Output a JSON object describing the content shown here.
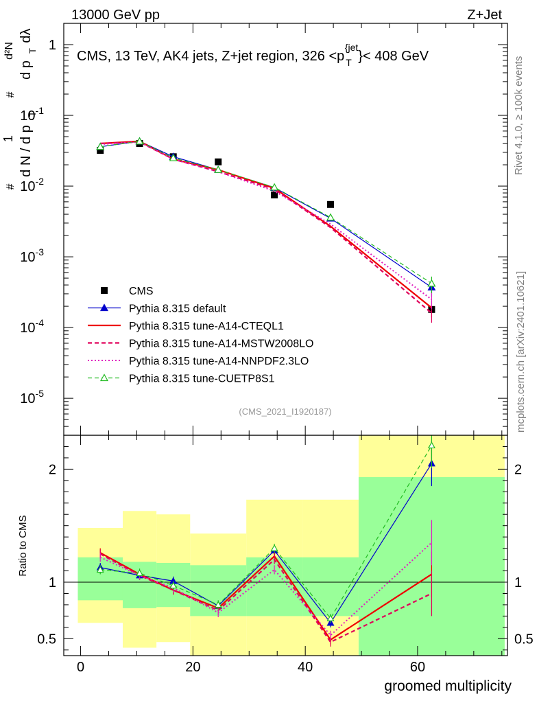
{
  "header": {
    "left": "13000 GeV pp",
    "right": "Z+Jet"
  },
  "side_labels": {
    "rivet": "Rivet 4.1.0, ≥ 100k events",
    "mcplots": "mcplots.cern.ch [arXiv:2401.10621]"
  },
  "colors": {
    "cms": "#000000",
    "default": "#0000cc",
    "a14_cteql1": "#ee0000",
    "a14_mstw": "#e0005a",
    "a14_nnpdf": "#e020c0",
    "cuetp8s1": "#22bb22",
    "band_inner": "#99ff99",
    "band_outer": "#ffff99"
  },
  "chart_data": [
    {
      "type": "line",
      "panel": "main",
      "title": "CMS, 13 TeV, AK4 jets, Z+jet region, 326 <p_T^{jet}< 408 GeV",
      "title_main": "CMS, 13 TeV, AK4 jets, Z+jet region, 326 <p",
      "title_sub": "T",
      "title_sup": "{jet",
      "title_end": "}< 408 GeV",
      "ylabel": "1/N dN/dp_T d²N/(dp_T dλ)",
      "ylabel_parts": [
        "d N / d p",
        "T",
        "#",
        "1",
        "d p",
        "T",
        "dλ",
        "#",
        "d²N"
      ],
      "yscale": "log",
      "ylim": [
        3e-06,
        2
      ],
      "xlim": [
        -3,
        76
      ],
      "ytick_values": [
        1e-05,
        0.0001,
        0.001,
        0.01,
        0.1,
        1
      ],
      "ytick_labels": [
        [
          "10",
          "-5"
        ],
        [
          "10",
          "-4"
        ],
        [
          "10",
          "-3"
        ],
        [
          "10",
          "-2"
        ],
        [
          "10",
          "-1"
        ],
        [
          "1",
          ""
        ]
      ],
      "annotation": "(CMS_2021_I1920187)",
      "x": [
        3.5,
        10.5,
        16.5,
        24.5,
        34.5,
        44.5,
        62.5
      ],
      "series": [
        {
          "name": "CMS",
          "key": "cms",
          "values": [
            0.032,
            0.04,
            0.026,
            0.022,
            0.0075,
            0.0055,
            0.00018
          ]
        },
        {
          "name": "Pythia 8.315 default",
          "key": "default",
          "values": [
            0.036,
            0.043,
            0.026,
            0.017,
            0.0095,
            0.0035,
            0.00037
          ]
        },
        {
          "name": "Pythia 8.315 tune-A14-CTEQL1",
          "key": "a14_cteql1",
          "values": [
            0.04,
            0.043,
            0.024,
            0.017,
            0.0093,
            0.0027,
            0.00019
          ]
        },
        {
          "name": "Pythia 8.315 tune-A14-MSTW2008LO",
          "key": "a14_mstw",
          "values": [
            0.04,
            0.042,
            0.024,
            0.016,
            0.009,
            0.0026,
            0.00016
          ]
        },
        {
          "name": "Pythia 8.315 tune-A14-NNPDF2.3LO",
          "key": "a14_nnpdf",
          "values": [
            0.039,
            0.042,
            0.024,
            0.016,
            0.0085,
            0.0029,
            0.00025
          ]
        },
        {
          "name": "Pythia 8.315 tune-CUETP8S1",
          "key": "cuetp8s1",
          "values": [
            0.036,
            0.043,
            0.025,
            0.017,
            0.0096,
            0.0036,
            0.00042
          ]
        }
      ]
    },
    {
      "type": "line",
      "panel": "ratio",
      "xlabel": "groomed multiplicity",
      "ylabel": "Ratio to CMS",
      "ylim": [
        0.35,
        2.3
      ],
      "xlim": [
        -3,
        76
      ],
      "xticks": [
        0,
        20,
        40,
        60
      ],
      "yticks": [
        0.5,
        1,
        2
      ],
      "x": [
        3.5,
        10.5,
        16.5,
        24.5,
        34.5,
        44.5,
        62.5
      ],
      "bands": {
        "bin_edges": [
          -0.5,
          7.5,
          13.5,
          19.5,
          29.5,
          39.5,
          49.5,
          75.5
        ],
        "inner": [
          [
            0.84,
            1.22
          ],
          [
            0.77,
            1.18
          ],
          [
            0.78,
            1.17
          ],
          [
            0.7,
            1.15
          ],
          [
            0.7,
            1.22
          ],
          [
            0.7,
            1.22
          ],
          [
            0.35,
            1.93
          ]
        ],
        "outer": [
          [
            0.64,
            1.48
          ],
          [
            0.42,
            1.63
          ],
          [
            0.47,
            1.6
          ],
          [
            0.35,
            1.43
          ],
          [
            0.35,
            1.73
          ],
          [
            0.35,
            1.73
          ],
          [
            0.35,
            2.3
          ]
        ]
      },
      "series": [
        {
          "name": "Pythia 8.315 default",
          "key": "default",
          "values": [
            1.13,
            1.06,
            1.01,
            0.79,
            1.28,
            0.64,
            2.05
          ]
        },
        {
          "name": "Pythia 8.315 tune-A14-CTEQL1",
          "key": "a14_cteql1",
          "values": [
            1.26,
            1.07,
            0.93,
            0.77,
            1.23,
            0.49,
            1.07
          ]
        },
        {
          "name": "Pythia 8.315 tune-A14-MSTW2008LO",
          "key": "a14_mstw",
          "values": [
            1.25,
            1.06,
            0.93,
            0.75,
            1.2,
            0.47,
            0.9
          ]
        },
        {
          "name": "Pythia 8.315 tune-A14-NNPDF2.3LO",
          "key": "a14_nnpdf",
          "values": [
            1.22,
            1.06,
            0.95,
            0.73,
            1.11,
            0.53,
            1.35
          ]
        },
        {
          "name": "Pythia 8.315 tune-CUETP8S1",
          "key": "cuetp8s1",
          "values": [
            1.11,
            1.08,
            0.97,
            0.8,
            1.3,
            0.68,
            2.21
          ]
        }
      ]
    }
  ]
}
